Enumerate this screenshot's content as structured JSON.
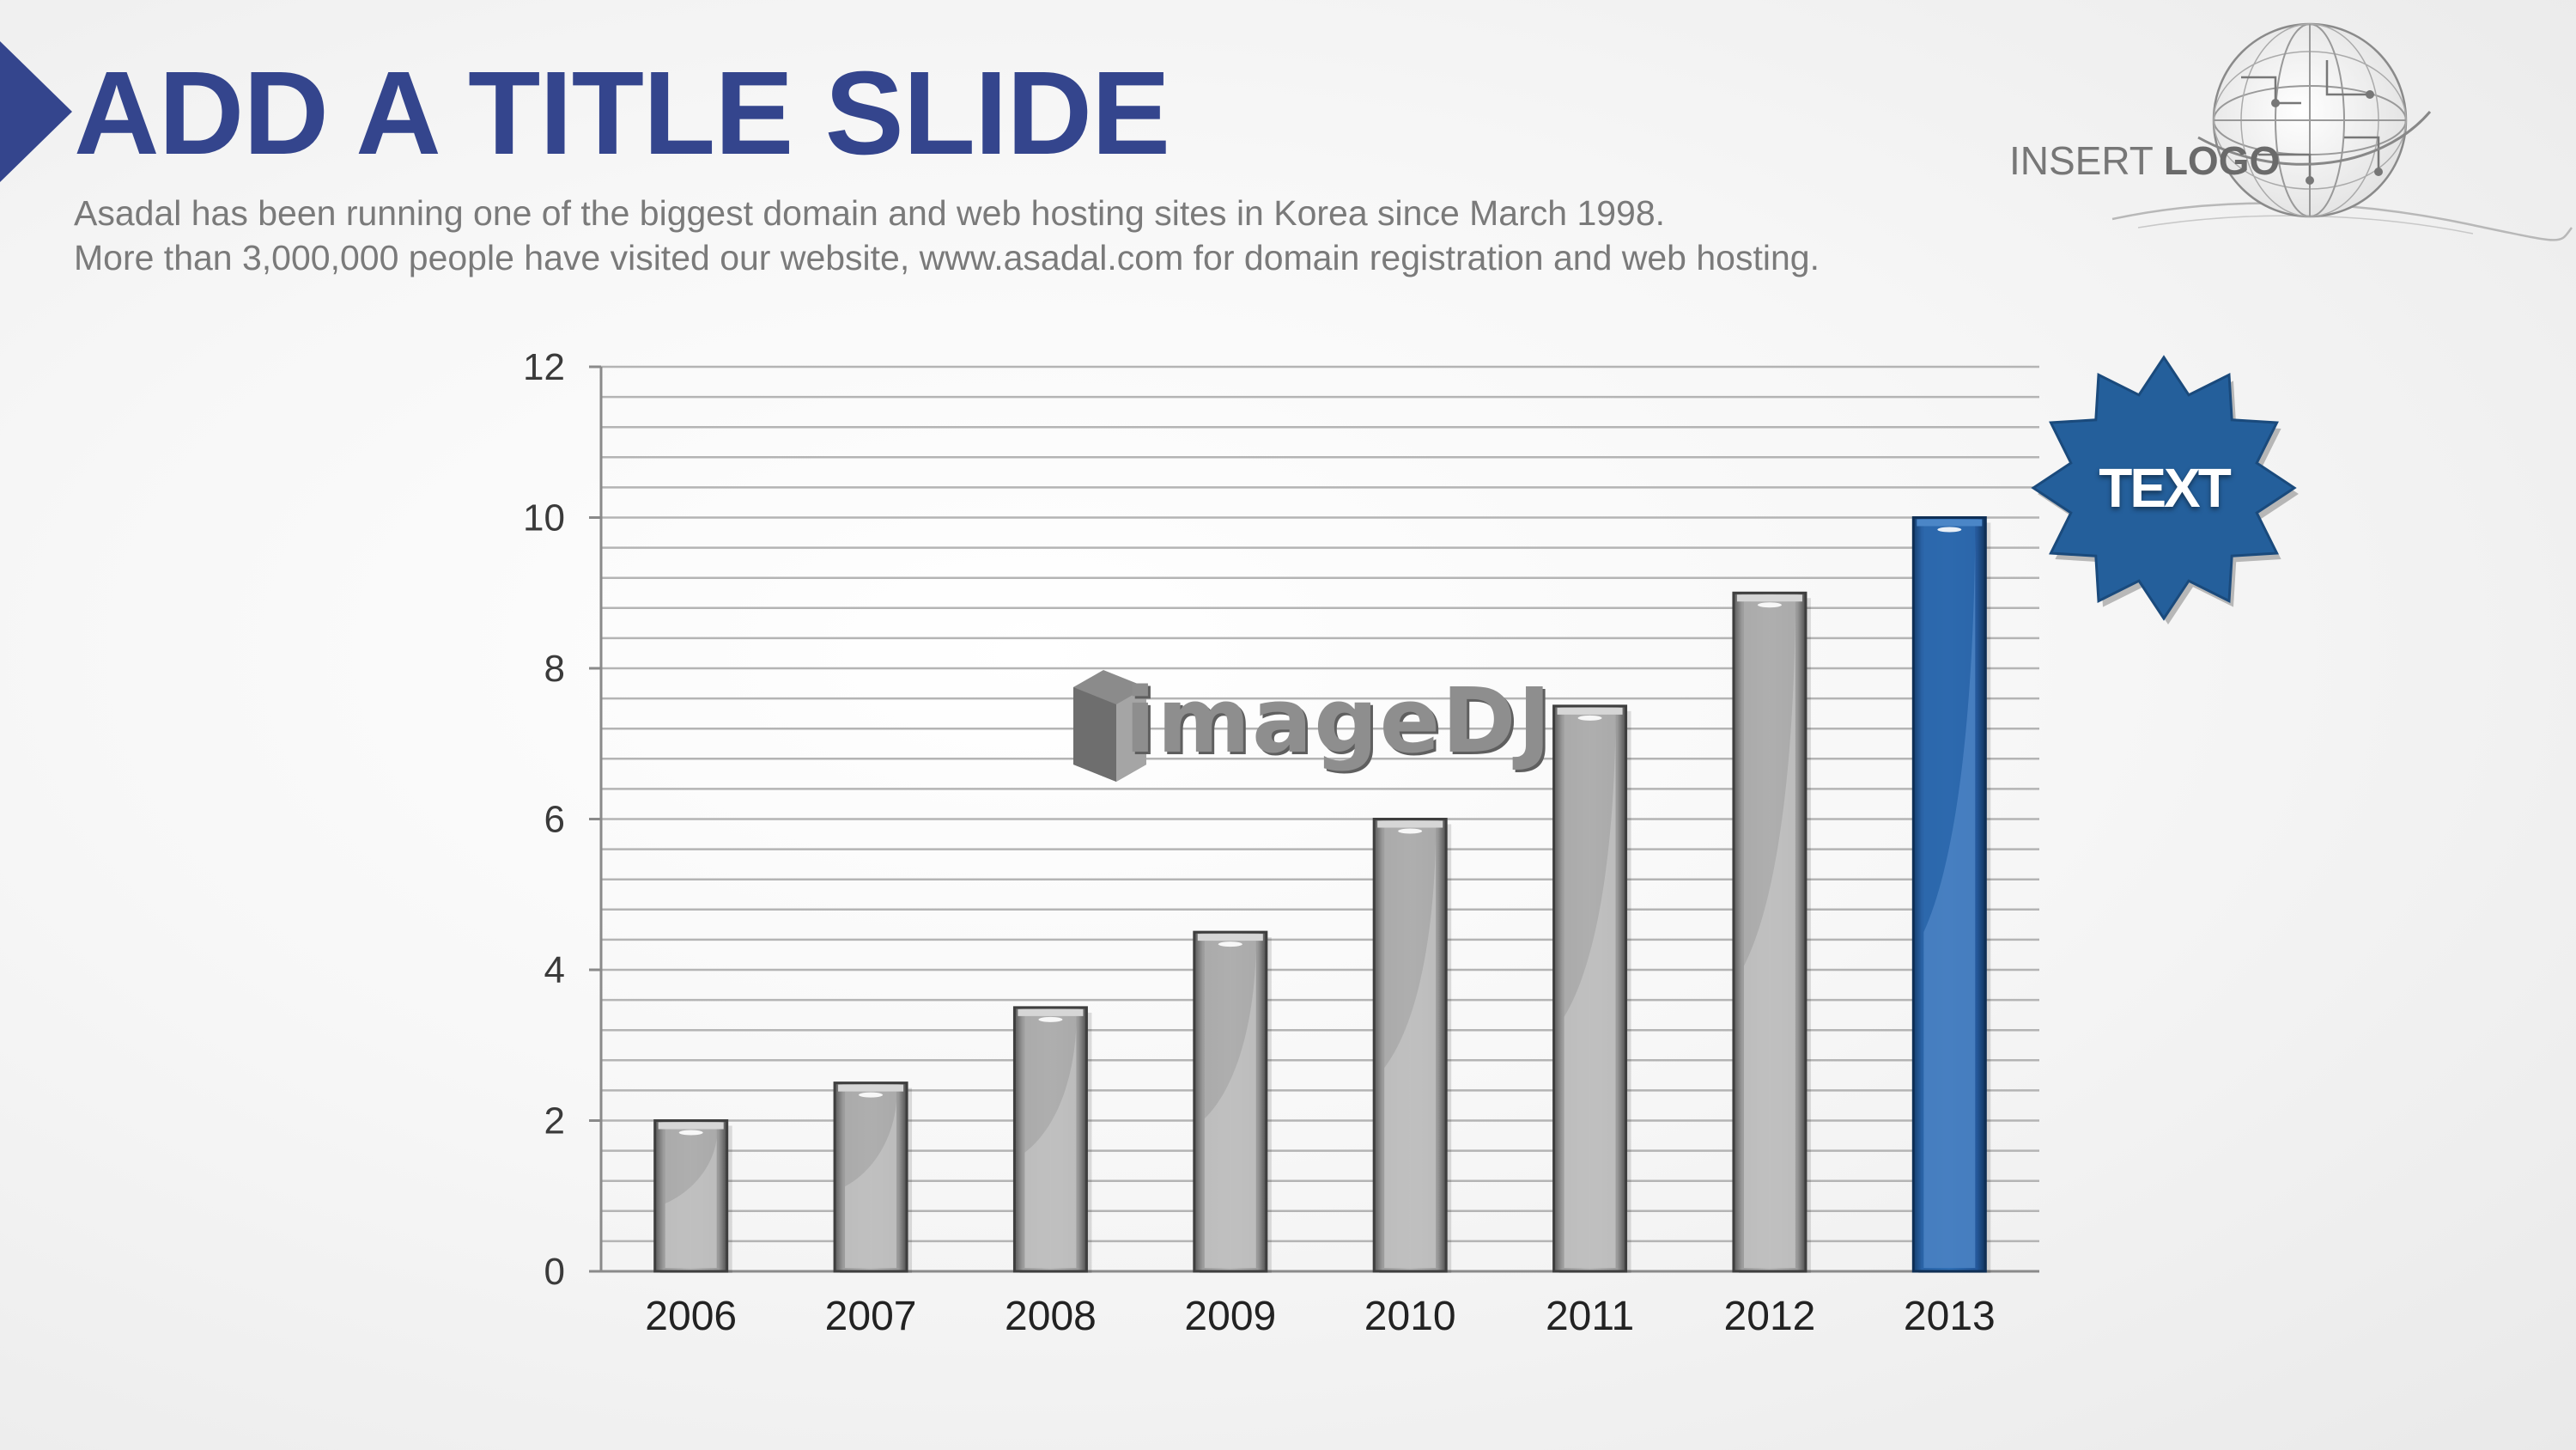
{
  "slide": {
    "title": "ADD A TITLE SLIDE",
    "subtitle_lines": [
      "Asadal has been running one of the biggest domain and web hosting sites in Korea since March 1998.",
      "More than 3,000,000 people have visited our website,  www.asadal.com for domain registration and web hosting."
    ],
    "logo_prefix": "INSERT",
    "logo_word": "LOGO",
    "badge_text": "TEXT",
    "watermark": "imageDJ"
  },
  "colors": {
    "title": "#34458d",
    "highlight_bar": "#1f5fa3",
    "bars": "#a8a8a8",
    "badge": "#245f9b"
  },
  "chart_data": {
    "type": "bar",
    "categories": [
      "2006",
      "2007",
      "2008",
      "2009",
      "2010",
      "2011",
      "2012",
      "2013"
    ],
    "values": [
      2,
      2.5,
      3.5,
      4.5,
      6,
      7.5,
      9,
      10
    ],
    "highlight_index": 7,
    "ylim": [
      0,
      12
    ],
    "yticks": [
      0,
      2,
      4,
      6,
      8,
      10,
      12
    ],
    "minor_step": 0.4,
    "grid": true,
    "title": "",
    "xlabel": "",
    "ylabel": ""
  }
}
